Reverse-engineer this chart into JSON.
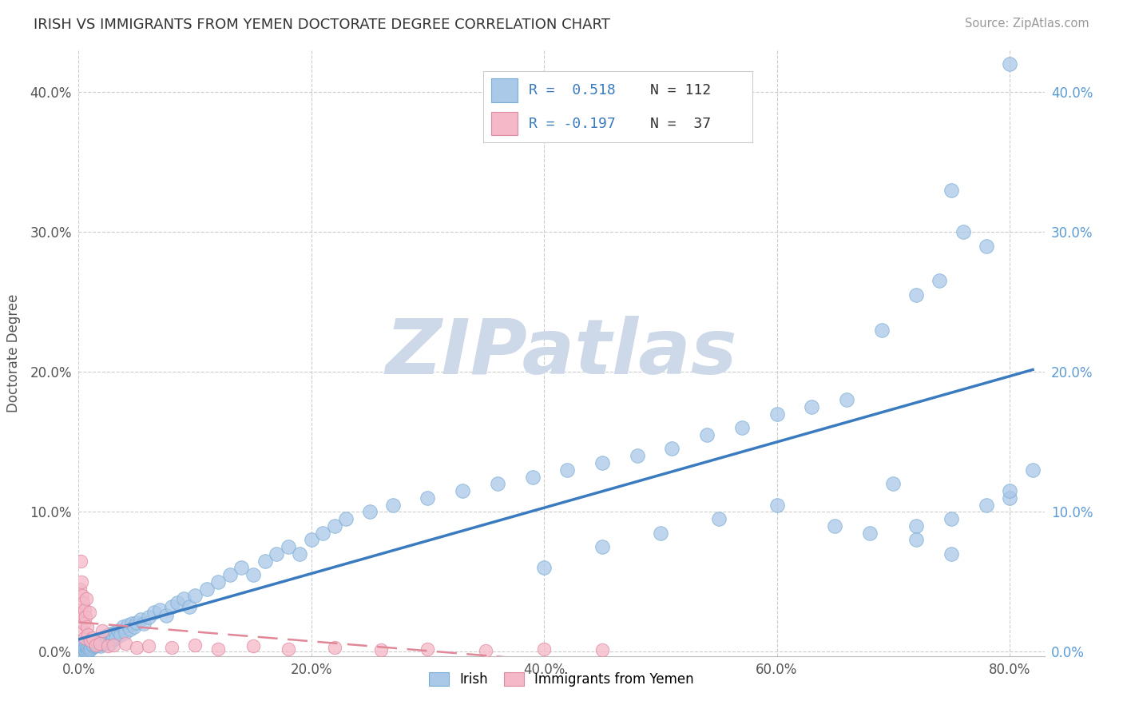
{
  "title": "IRISH VS IMMIGRANTS FROM YEMEN DOCTORATE DEGREE CORRELATION CHART",
  "source": "Source: ZipAtlas.com",
  "xlim": [
    0.0,
    83.0
  ],
  "ylim": [
    -0.3,
    43.0
  ],
  "xtick_vals": [
    0,
    20,
    40,
    60,
    80
  ],
  "ytick_vals": [
    0,
    10,
    20,
    30,
    40
  ],
  "right_ytick_color": "#5b9bd5",
  "irish_color": "#aac8e8",
  "irish_edge": "#7aadd4",
  "yemen_color": "#f4b8c8",
  "yemen_edge": "#e088a0",
  "trend_irish_color": "#3a7bbf",
  "trend_yemen_color": "#e08898",
  "trend_irish_lw": 2.5,
  "trend_yemen_lw": 1.8,
  "watermark": "ZIPatlas",
  "watermark_color": "#cdd8e8",
  "legend_r1": "R =  0.518",
  "legend_n1": "N = 112",
  "legend_r2": "R = -0.197",
  "legend_n2": "N =  37",
  "irish_x": [
    0.1,
    0.2,
    0.2,
    0.3,
    0.3,
    0.4,
    0.4,
    0.5,
    0.5,
    0.6,
    0.6,
    0.7,
    0.7,
    0.8,
    0.8,
    0.9,
    0.9,
    1.0,
    1.0,
    1.1,
    1.2,
    1.3,
    1.4,
    1.5,
    1.6,
    1.7,
    1.8,
    1.9,
    2.0,
    2.1,
    2.2,
    2.3,
    2.4,
    2.5,
    2.6,
    2.7,
    2.8,
    2.9,
    3.0,
    3.1,
    3.2,
    3.4,
    3.6,
    3.8,
    4.0,
    4.2,
    4.4,
    4.6,
    4.8,
    5.0,
    5.3,
    5.6,
    6.0,
    6.5,
    7.0,
    7.5,
    8.0,
    8.5,
    9.0,
    9.5,
    10.0,
    11.0,
    12.0,
    13.0,
    14.0,
    15.0,
    16.0,
    17.0,
    18.0,
    19.0,
    20.0,
    21.0,
    22.0,
    23.0,
    25.0,
    27.0,
    30.0,
    33.0,
    36.0,
    39.0,
    42.0,
    45.0,
    48.0,
    51.0,
    54.0,
    57.0,
    60.0,
    63.0,
    66.0,
    69.0,
    72.0,
    75.0,
    40.0,
    45.0,
    50.0,
    55.0,
    60.0,
    65.0,
    70.0,
    75.0,
    80.0,
    68.0,
    72.0,
    74.0,
    76.0,
    78.0,
    80.0,
    72.0,
    75.0,
    78.0,
    80.0,
    82.0
  ],
  "irish_y": [
    0.1,
    0.2,
    0.15,
    0.3,
    0.1,
    0.2,
    0.4,
    0.15,
    0.25,
    0.1,
    0.35,
    0.2,
    0.4,
    0.1,
    0.3,
    0.15,
    0.5,
    0.2,
    0.6,
    0.3,
    0.4,
    0.5,
    0.6,
    0.4,
    0.7,
    0.5,
    0.8,
    0.4,
    0.9,
    0.6,
    1.0,
    0.7,
    1.1,
    0.8,
    1.2,
    0.6,
    1.3,
    0.9,
    1.1,
    1.4,
    1.0,
    1.5,
    1.2,
    1.8,
    1.4,
    1.9,
    1.6,
    2.0,
    1.8,
    2.1,
    2.3,
    2.0,
    2.5,
    2.8,
    3.0,
    2.6,
    3.2,
    3.5,
    3.8,
    3.2,
    4.0,
    4.5,
    5.0,
    5.5,
    6.0,
    5.5,
    6.5,
    7.0,
    7.5,
    7.0,
    8.0,
    8.5,
    9.0,
    9.5,
    10.0,
    10.5,
    11.0,
    11.5,
    12.0,
    12.5,
    13.0,
    13.5,
    14.0,
    14.5,
    15.5,
    16.0,
    17.0,
    17.5,
    18.0,
    23.0,
    25.5,
    33.0,
    6.0,
    7.5,
    8.5,
    9.5,
    10.5,
    9.0,
    12.0,
    7.0,
    42.0,
    8.5,
    9.0,
    26.5,
    30.0,
    29.0,
    11.0,
    8.0,
    9.5,
    10.5,
    11.5,
    13.0
  ],
  "yemen_x": [
    0.1,
    0.15,
    0.2,
    0.25,
    0.3,
    0.3,
    0.35,
    0.4,
    0.45,
    0.5,
    0.55,
    0.6,
    0.65,
    0.7,
    0.8,
    0.9,
    1.0,
    1.2,
    1.5,
    1.8,
    2.0,
    2.5,
    3.0,
    4.0,
    5.0,
    6.0,
    8.0,
    10.0,
    12.0,
    15.0,
    18.0,
    22.0,
    26.0,
    30.0,
    35.0,
    40.0,
    45.0
  ],
  "yemen_y": [
    4.5,
    6.5,
    3.0,
    5.0,
    2.5,
    4.0,
    3.5,
    1.5,
    2.0,
    3.0,
    1.0,
    2.5,
    3.8,
    1.8,
    1.2,
    2.8,
    0.8,
    1.0,
    0.5,
    0.6,
    1.5,
    0.4,
    0.5,
    0.6,
    0.3,
    0.4,
    0.3,
    0.5,
    0.2,
    0.4,
    0.2,
    0.3,
    0.15,
    0.2,
    0.1,
    0.2,
    0.15
  ]
}
